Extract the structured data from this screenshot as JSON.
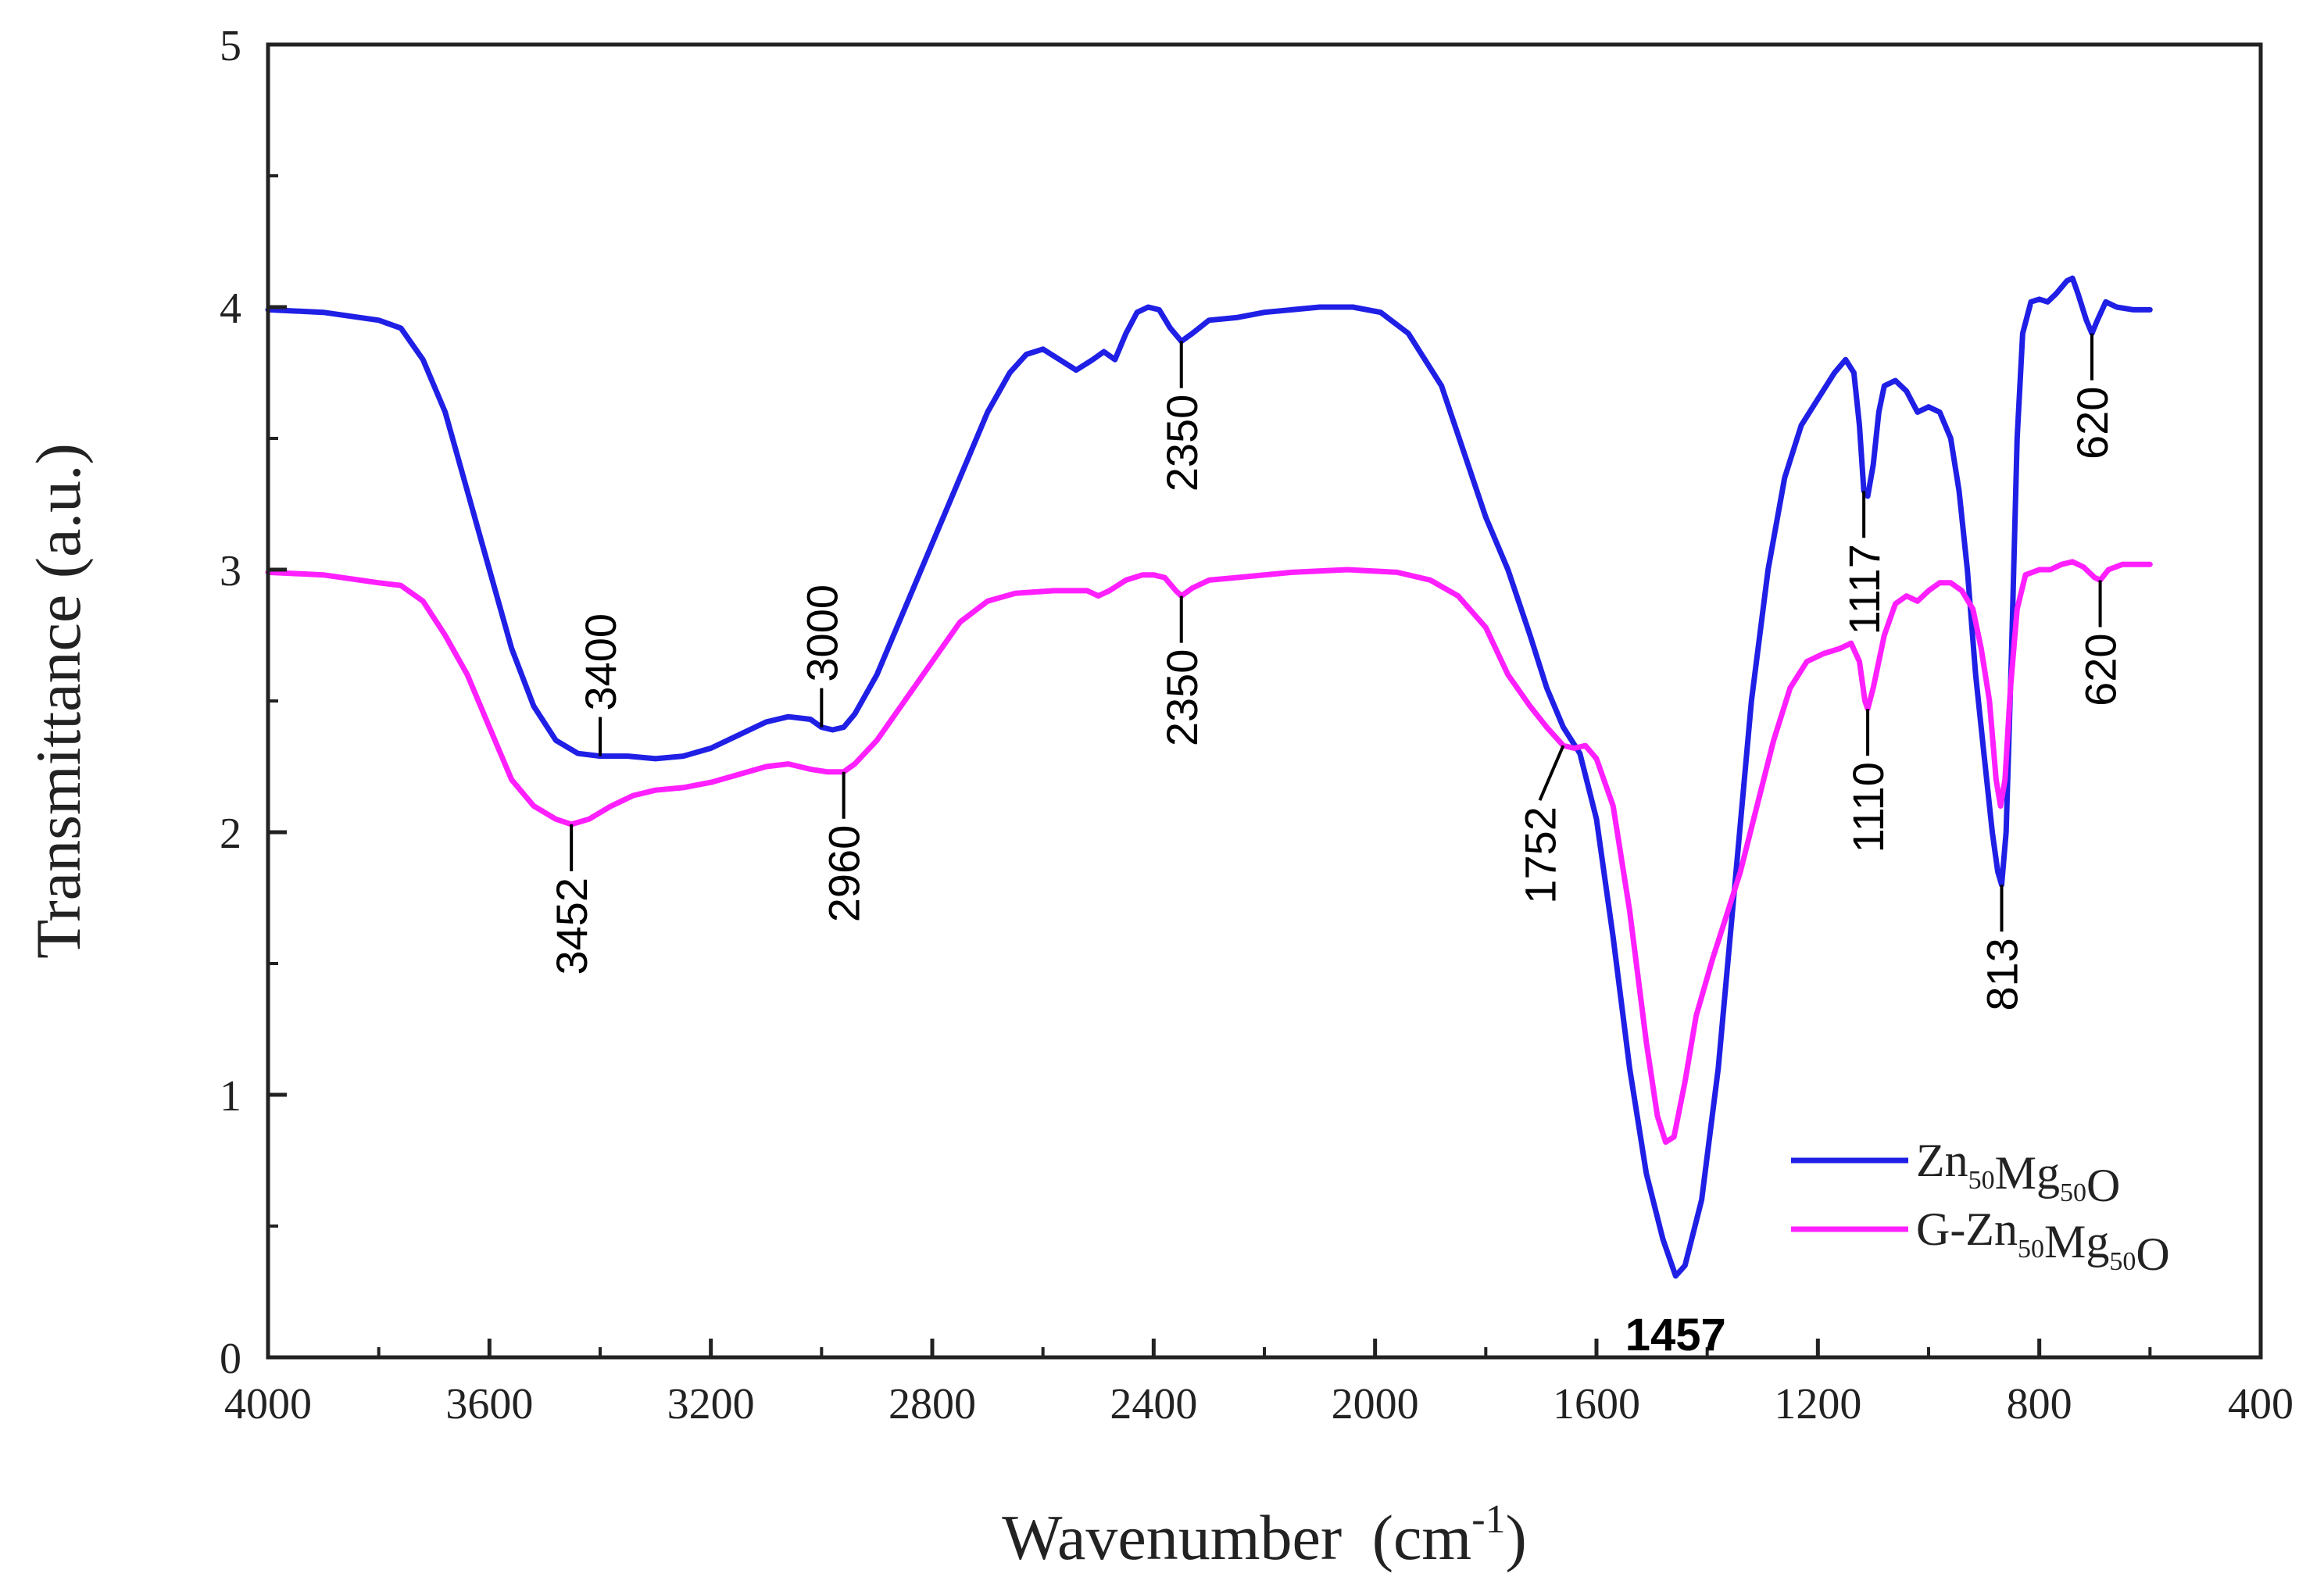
{
  "chart_data": {
    "type": "line",
    "title": "",
    "xlabel": "Wavenumber",
    "xlabel_unit_base": "(cm",
    "xlabel_unit_sup": "-1",
    "xlabel_unit_close": ")",
    "ylabel": "Transmittance (a.u.)",
    "xlim": [
      4000,
      400
    ],
    "ylim": [
      0,
      5
    ],
    "x_ticks": [
      4000,
      3600,
      3200,
      2800,
      2400,
      2000,
      1600,
      1200,
      800,
      400
    ],
    "y_ticks": [
      0,
      1,
      2,
      3,
      4,
      5
    ],
    "legend_position": "lower-right",
    "series": [
      {
        "name": "Zn50Mg50O",
        "legend_parts": [
          {
            "t": "Zn",
            "sub": false
          },
          {
            "t": "50",
            "sub": true
          },
          {
            "t": "Mg",
            "sub": false
          },
          {
            "t": "50",
            "sub": true
          },
          {
            "t": "O",
            "sub": false
          }
        ],
        "color": "#1f1fe6",
        "points": [
          [
            4000,
            3.99
          ],
          [
            3900,
            3.98
          ],
          [
            3800,
            3.95
          ],
          [
            3760,
            3.92
          ],
          [
            3720,
            3.8
          ],
          [
            3680,
            3.6
          ],
          [
            3640,
            3.3
          ],
          [
            3600,
            3.0
          ],
          [
            3560,
            2.7
          ],
          [
            3520,
            2.48
          ],
          [
            3480,
            2.35
          ],
          [
            3440,
            2.3
          ],
          [
            3400,
            2.29
          ],
          [
            3350,
            2.29
          ],
          [
            3300,
            2.28
          ],
          [
            3250,
            2.29
          ],
          [
            3200,
            2.32
          ],
          [
            3150,
            2.37
          ],
          [
            3100,
            2.42
          ],
          [
            3060,
            2.44
          ],
          [
            3020,
            2.43
          ],
          [
            3000,
            2.4
          ],
          [
            2980,
            2.39
          ],
          [
            2960,
            2.4
          ],
          [
            2940,
            2.45
          ],
          [
            2900,
            2.6
          ],
          [
            2850,
            2.85
          ],
          [
            2800,
            3.1
          ],
          [
            2750,
            3.35
          ],
          [
            2700,
            3.6
          ],
          [
            2660,
            3.75
          ],
          [
            2630,
            3.82
          ],
          [
            2600,
            3.84
          ],
          [
            2570,
            3.8
          ],
          [
            2540,
            3.76
          ],
          [
            2510,
            3.8
          ],
          [
            2490,
            3.83
          ],
          [
            2470,
            3.8
          ],
          [
            2450,
            3.9
          ],
          [
            2430,
            3.98
          ],
          [
            2410,
            4.0
          ],
          [
            2390,
            3.99
          ],
          [
            2370,
            3.92
          ],
          [
            2350,
            3.87
          ],
          [
            2330,
            3.9
          ],
          [
            2300,
            3.95
          ],
          [
            2250,
            3.96
          ],
          [
            2200,
            3.98
          ],
          [
            2100,
            4.0
          ],
          [
            2040,
            4.0
          ],
          [
            1990,
            3.98
          ],
          [
            1940,
            3.9
          ],
          [
            1880,
            3.7
          ],
          [
            1840,
            3.45
          ],
          [
            1800,
            3.2
          ],
          [
            1760,
            3.0
          ],
          [
            1720,
            2.75
          ],
          [
            1690,
            2.55
          ],
          [
            1660,
            2.4
          ],
          [
            1630,
            2.3
          ],
          [
            1600,
            2.05
          ],
          [
            1570,
            1.6
          ],
          [
            1540,
            1.1
          ],
          [
            1510,
            0.7
          ],
          [
            1480,
            0.45
          ],
          [
            1457,
            0.31
          ],
          [
            1440,
            0.35
          ],
          [
            1410,
            0.6
          ],
          [
            1380,
            1.1
          ],
          [
            1350,
            1.8
          ],
          [
            1320,
            2.5
          ],
          [
            1290,
            3.0
          ],
          [
            1260,
            3.35
          ],
          [
            1230,
            3.55
          ],
          [
            1200,
            3.65
          ],
          [
            1170,
            3.75
          ],
          [
            1150,
            3.8
          ],
          [
            1135,
            3.75
          ],
          [
            1125,
            3.55
          ],
          [
            1117,
            3.3
          ],
          [
            1110,
            3.28
          ],
          [
            1100,
            3.4
          ],
          [
            1090,
            3.6
          ],
          [
            1080,
            3.7
          ],
          [
            1060,
            3.72
          ],
          [
            1040,
            3.68
          ],
          [
            1020,
            3.6
          ],
          [
            1000,
            3.62
          ],
          [
            980,
            3.6
          ],
          [
            960,
            3.5
          ],
          [
            945,
            3.3
          ],
          [
            930,
            3.0
          ],
          [
            915,
            2.6
          ],
          [
            900,
            2.3
          ],
          [
            885,
            2.0
          ],
          [
            875,
            1.85
          ],
          [
            868,
            1.8
          ],
          [
            860,
            2.0
          ],
          [
            850,
            2.7
          ],
          [
            840,
            3.5
          ],
          [
            830,
            3.9
          ],
          [
            815,
            4.02
          ],
          [
            800,
            4.03
          ],
          [
            785,
            4.02
          ],
          [
            770,
            4.05
          ],
          [
            750,
            4.1
          ],
          [
            740,
            4.11
          ],
          [
            730,
            4.05
          ],
          [
            715,
            3.95
          ],
          [
            705,
            3.9
          ],
          [
            695,
            3.95
          ],
          [
            680,
            4.02
          ],
          [
            660,
            4.0
          ],
          [
            630,
            3.99
          ],
          [
            600,
            3.99
          ]
        ]
      },
      {
        "name": "G-Zn50Mg50O",
        "legend_parts": [
          {
            "t": "G-Zn",
            "sub": false
          },
          {
            "t": "50",
            "sub": true
          },
          {
            "t": "Mg",
            "sub": false
          },
          {
            "t": "50",
            "sub": true
          },
          {
            "t": "O",
            "sub": false
          }
        ],
        "color": "#ff1fff",
        "points": [
          [
            4000,
            2.99
          ],
          [
            3900,
            2.98
          ],
          [
            3800,
            2.95
          ],
          [
            3760,
            2.94
          ],
          [
            3720,
            2.88
          ],
          [
            3680,
            2.75
          ],
          [
            3640,
            2.6
          ],
          [
            3600,
            2.4
          ],
          [
            3560,
            2.2
          ],
          [
            3520,
            2.1
          ],
          [
            3480,
            2.05
          ],
          [
            3452,
            2.03
          ],
          [
            3420,
            2.05
          ],
          [
            3380,
            2.1
          ],
          [
            3340,
            2.14
          ],
          [
            3300,
            2.16
          ],
          [
            3250,
            2.17
          ],
          [
            3200,
            2.19
          ],
          [
            3150,
            2.22
          ],
          [
            3100,
            2.25
          ],
          [
            3060,
            2.26
          ],
          [
            3020,
            2.24
          ],
          [
            2990,
            2.23
          ],
          [
            2960,
            2.23
          ],
          [
            2940,
            2.26
          ],
          [
            2900,
            2.35
          ],
          [
            2850,
            2.5
          ],
          [
            2800,
            2.65
          ],
          [
            2750,
            2.8
          ],
          [
            2700,
            2.88
          ],
          [
            2650,
            2.91
          ],
          [
            2580,
            2.92
          ],
          [
            2520,
            2.92
          ],
          [
            2500,
            2.9
          ],
          [
            2480,
            2.92
          ],
          [
            2450,
            2.96
          ],
          [
            2420,
            2.98
          ],
          [
            2400,
            2.98
          ],
          [
            2380,
            2.97
          ],
          [
            2360,
            2.92
          ],
          [
            2350,
            2.9
          ],
          [
            2330,
            2.93
          ],
          [
            2300,
            2.96
          ],
          [
            2250,
            2.97
          ],
          [
            2150,
            2.99
          ],
          [
            2050,
            3.0
          ],
          [
            1960,
            2.99
          ],
          [
            1900,
            2.96
          ],
          [
            1850,
            2.9
          ],
          [
            1800,
            2.78
          ],
          [
            1760,
            2.6
          ],
          [
            1720,
            2.48
          ],
          [
            1690,
            2.4
          ],
          [
            1660,
            2.33
          ],
          [
            1640,
            2.32
          ],
          [
            1620,
            2.33
          ],
          [
            1600,
            2.28
          ],
          [
            1570,
            2.1
          ],
          [
            1540,
            1.7
          ],
          [
            1510,
            1.2
          ],
          [
            1490,
            0.92
          ],
          [
            1475,
            0.82
          ],
          [
            1460,
            0.84
          ],
          [
            1440,
            1.05
          ],
          [
            1420,
            1.3
          ],
          [
            1390,
            1.52
          ],
          [
            1370,
            1.65
          ],
          [
            1340,
            1.85
          ],
          [
            1310,
            2.1
          ],
          [
            1280,
            2.35
          ],
          [
            1250,
            2.55
          ],
          [
            1220,
            2.65
          ],
          [
            1190,
            2.68
          ],
          [
            1160,
            2.7
          ],
          [
            1140,
            2.72
          ],
          [
            1125,
            2.65
          ],
          [
            1115,
            2.5
          ],
          [
            1110,
            2.47
          ],
          [
            1100,
            2.55
          ],
          [
            1080,
            2.75
          ],
          [
            1060,
            2.87
          ],
          [
            1040,
            2.9
          ],
          [
            1020,
            2.88
          ],
          [
            1000,
            2.92
          ],
          [
            980,
            2.95
          ],
          [
            960,
            2.95
          ],
          [
            940,
            2.92
          ],
          [
            920,
            2.85
          ],
          [
            905,
            2.7
          ],
          [
            890,
            2.5
          ],
          [
            878,
            2.2
          ],
          [
            870,
            2.1
          ],
          [
            862,
            2.2
          ],
          [
            852,
            2.55
          ],
          [
            840,
            2.85
          ],
          [
            825,
            2.98
          ],
          [
            800,
            3.0
          ],
          [
            780,
            3.0
          ],
          [
            760,
            3.02
          ],
          [
            740,
            3.03
          ],
          [
            720,
            3.01
          ],
          [
            700,
            2.97
          ],
          [
            690,
            2.96
          ],
          [
            675,
            3.0
          ],
          [
            650,
            3.02
          ],
          [
            600,
            3.02
          ]
        ]
      }
    ],
    "annotations": [
      {
        "label": "3452",
        "series": 1,
        "x": 3452,
        "y": 2.03,
        "dir": "down",
        "bold": false
      },
      {
        "label": "3400",
        "series": 0,
        "x": 3400,
        "y": 2.29,
        "dir": "up",
        "bold": false
      },
      {
        "label": "3000",
        "series": 0,
        "x": 3000,
        "y": 2.4,
        "dir": "up",
        "bold": false
      },
      {
        "label": "2960",
        "series": 1,
        "x": 2960,
        "y": 2.23,
        "dir": "down",
        "bold": false
      },
      {
        "label": "2350",
        "series": 0,
        "x": 2350,
        "y": 3.87,
        "dir": "down",
        "bold": false
      },
      {
        "label": "2350",
        "series": 1,
        "x": 2350,
        "y": 2.9,
        "dir": "down",
        "bold": false
      },
      {
        "label": "1752",
        "series": 1,
        "x": 1660,
        "y": 2.33,
        "dir": "down-left",
        "bold": false
      },
      {
        "label": "1457",
        "series": 0,
        "x": 1457,
        "y": 0.31,
        "dir": "below",
        "bold": true
      },
      {
        "label": "1117",
        "series": 0,
        "x": 1117,
        "y": 3.3,
        "dir": "down",
        "bold": false
      },
      {
        "label": "1110",
        "series": 1,
        "x": 1110,
        "y": 2.47,
        "dir": "down",
        "bold": false
      },
      {
        "label": "813",
        "series": 0,
        "x": 868,
        "y": 1.8,
        "dir": "down",
        "bold": false
      },
      {
        "label": "620",
        "series": 0,
        "x": 705,
        "y": 3.9,
        "dir": "down",
        "bold": false
      },
      {
        "label": "620",
        "series": 1,
        "x": 690,
        "y": 2.96,
        "dir": "down",
        "bold": false
      }
    ]
  }
}
